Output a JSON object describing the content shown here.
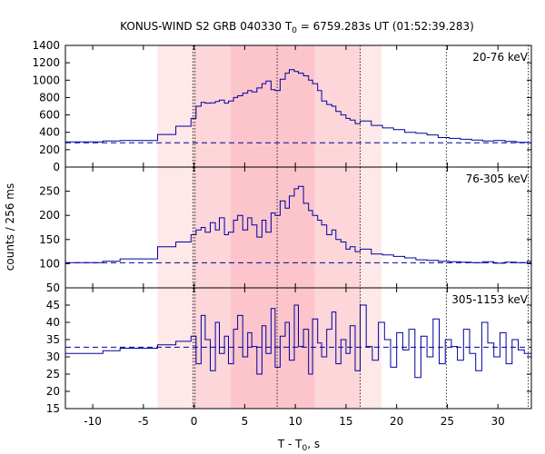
{
  "chart_data": {
    "type": "line",
    "title_main": "KONUS-WIND S2 GRB 040330 T",
    "title_sub": "0",
    "title_rest": " = 6759.283s UT (01:52:39.283)",
    "xlabel_main": "T - T",
    "xlabel_sub": "0",
    "xlabel_rest": ", s",
    "ylabel": "counts / 256 ms",
    "xlim": [
      -12.7,
      33.3
    ],
    "xticks": [
      -10,
      -5,
      0,
      5,
      10,
      15,
      20,
      25,
      30
    ],
    "colors": {
      "line": "#0000a0",
      "background": "#dd0000",
      "shade_outer": "#ffe8e8",
      "shade_mid": "#fdd6da",
      "shade_inner": "#fcc5cc"
    },
    "shaded_regions": [
      {
        "x0": -3.6,
        "x1": 18.5,
        "level": "outer"
      },
      {
        "x0": -0.1,
        "x1": 16.4,
        "level": "mid"
      },
      {
        "x0": 3.6,
        "x1": 11.9,
        "level": "inner"
      }
    ],
    "vertical_lines": [
      -0.1,
      0.1,
      8.2,
      16.4,
      24.9,
      33.0
    ],
    "panels": [
      {
        "energy": "20-76 keV",
        "ylim": [
          0,
          1400
        ],
        "yticks": [
          0,
          200,
          400,
          600,
          800,
          1000,
          1200,
          1400
        ],
        "background": 280,
        "x": [
          -12.7,
          -9.0,
          -7.3,
          -3.6,
          -1.8,
          -0.3,
          0.2,
          0.7,
          1.1,
          1.6,
          2.1,
          2.5,
          3.0,
          3.4,
          3.9,
          4.3,
          4.8,
          5.3,
          5.7,
          6.2,
          6.7,
          7.1,
          7.6,
          8.0,
          8.5,
          9.0,
          9.4,
          9.9,
          10.3,
          10.8,
          11.3,
          11.7,
          12.2,
          12.6,
          13.1,
          13.6,
          14.0,
          14.5,
          15.0,
          15.4,
          15.9,
          16.4,
          17.5,
          18.6,
          19.7,
          20.8,
          21.9,
          23.0,
          24.1,
          25.2,
          26.3,
          27.4,
          28.5,
          29.6,
          30.7,
          31.8,
          32.9
        ],
        "y": [
          290,
          300,
          305,
          375,
          470,
          560,
          700,
          745,
          735,
          740,
          755,
          770,
          735,
          760,
          800,
          820,
          850,
          880,
          865,
          910,
          960,
          990,
          890,
          880,
          1010,
          1080,
          1120,
          1100,
          1080,
          1050,
          1000,
          960,
          880,
          760,
          720,
          700,
          640,
          600,
          560,
          540,
          500,
          530,
          480,
          450,
          430,
          400,
          390,
          370,
          340,
          330,
          320,
          310,
          300,
          305,
          295,
          285,
          280
        ]
      },
      {
        "energy": "76-305 keV",
        "ylim": [
          50,
          300
        ],
        "yticks": [
          50,
          100,
          150,
          200,
          250
        ],
        "background": 102,
        "x": [
          -12.7,
          -9.0,
          -7.3,
          -3.6,
          -1.8,
          -0.3,
          0.2,
          0.7,
          1.1,
          1.6,
          2.1,
          2.5,
          3.0,
          3.4,
          3.9,
          4.3,
          4.8,
          5.3,
          5.7,
          6.2,
          6.7,
          7.1,
          7.6,
          8.0,
          8.5,
          9.0,
          9.4,
          9.9,
          10.3,
          10.8,
          11.3,
          11.7,
          12.2,
          12.6,
          13.1,
          13.6,
          14.0,
          14.5,
          15.0,
          15.4,
          15.9,
          16.4,
          17.5,
          18.6,
          19.7,
          20.8,
          21.9,
          23.0,
          24.1,
          25.2,
          26.3,
          27.4,
          28.5,
          29.6,
          30.7,
          31.8,
          32.9
        ],
        "y": [
          102,
          105,
          110,
          135,
          145,
          160,
          170,
          175,
          165,
          185,
          170,
          195,
          160,
          165,
          190,
          200,
          170,
          195,
          180,
          155,
          190,
          165,
          205,
          200,
          230,
          215,
          240,
          255,
          260,
          225,
          210,
          200,
          190,
          180,
          160,
          170,
          150,
          145,
          130,
          135,
          125,
          130,
          120,
          118,
          115,
          112,
          108,
          107,
          105,
          104,
          103,
          102,
          104,
          101,
          103,
          102,
          105
        ]
      },
      {
        "energy": "305-1153 keV",
        "ylim": [
          15,
          50
        ],
        "yticks": [
          15,
          20,
          25,
          30,
          35,
          40,
          45
        ],
        "background": 32.8,
        "x": [
          -12.7,
          -9.0,
          -7.3,
          -3.6,
          -1.8,
          -0.3,
          0.2,
          0.7,
          1.1,
          1.6,
          2.1,
          2.5,
          3.0,
          3.4,
          3.9,
          4.3,
          4.8,
          5.3,
          5.7,
          6.2,
          6.7,
          7.1,
          7.6,
          8.0,
          8.5,
          9.0,
          9.4,
          9.9,
          10.3,
          10.8,
          11.3,
          11.7,
          12.2,
          12.6,
          13.1,
          13.6,
          14.0,
          14.5,
          15.0,
          15.4,
          15.9,
          16.4,
          17.0,
          17.6,
          18.2,
          18.8,
          19.4,
          20.0,
          20.6,
          21.2,
          21.8,
          22.4,
          23.0,
          23.6,
          24.2,
          24.8,
          25.4,
          26.0,
          26.6,
          27.2,
          27.8,
          28.4,
          29.0,
          29.6,
          30.2,
          30.8,
          31.4,
          32.0,
          32.6
        ],
        "y": [
          31,
          31.8,
          32.5,
          33.5,
          34.5,
          36,
          28,
          42,
          35,
          26,
          40,
          31,
          36,
          28,
          38,
          42,
          30,
          37,
          33,
          25,
          39,
          31,
          44,
          27,
          36,
          40,
          29,
          45,
          33,
          38,
          25,
          41,
          34,
          30,
          38,
          43,
          28,
          35,
          31,
          39,
          26,
          45,
          33,
          29,
          40,
          35,
          27,
          37,
          32,
          38,
          24,
          36,
          30,
          41,
          28,
          35,
          33,
          29,
          38,
          31,
          26,
          40,
          34,
          30,
          37,
          28,
          35,
          32,
          31
        ]
      }
    ]
  }
}
